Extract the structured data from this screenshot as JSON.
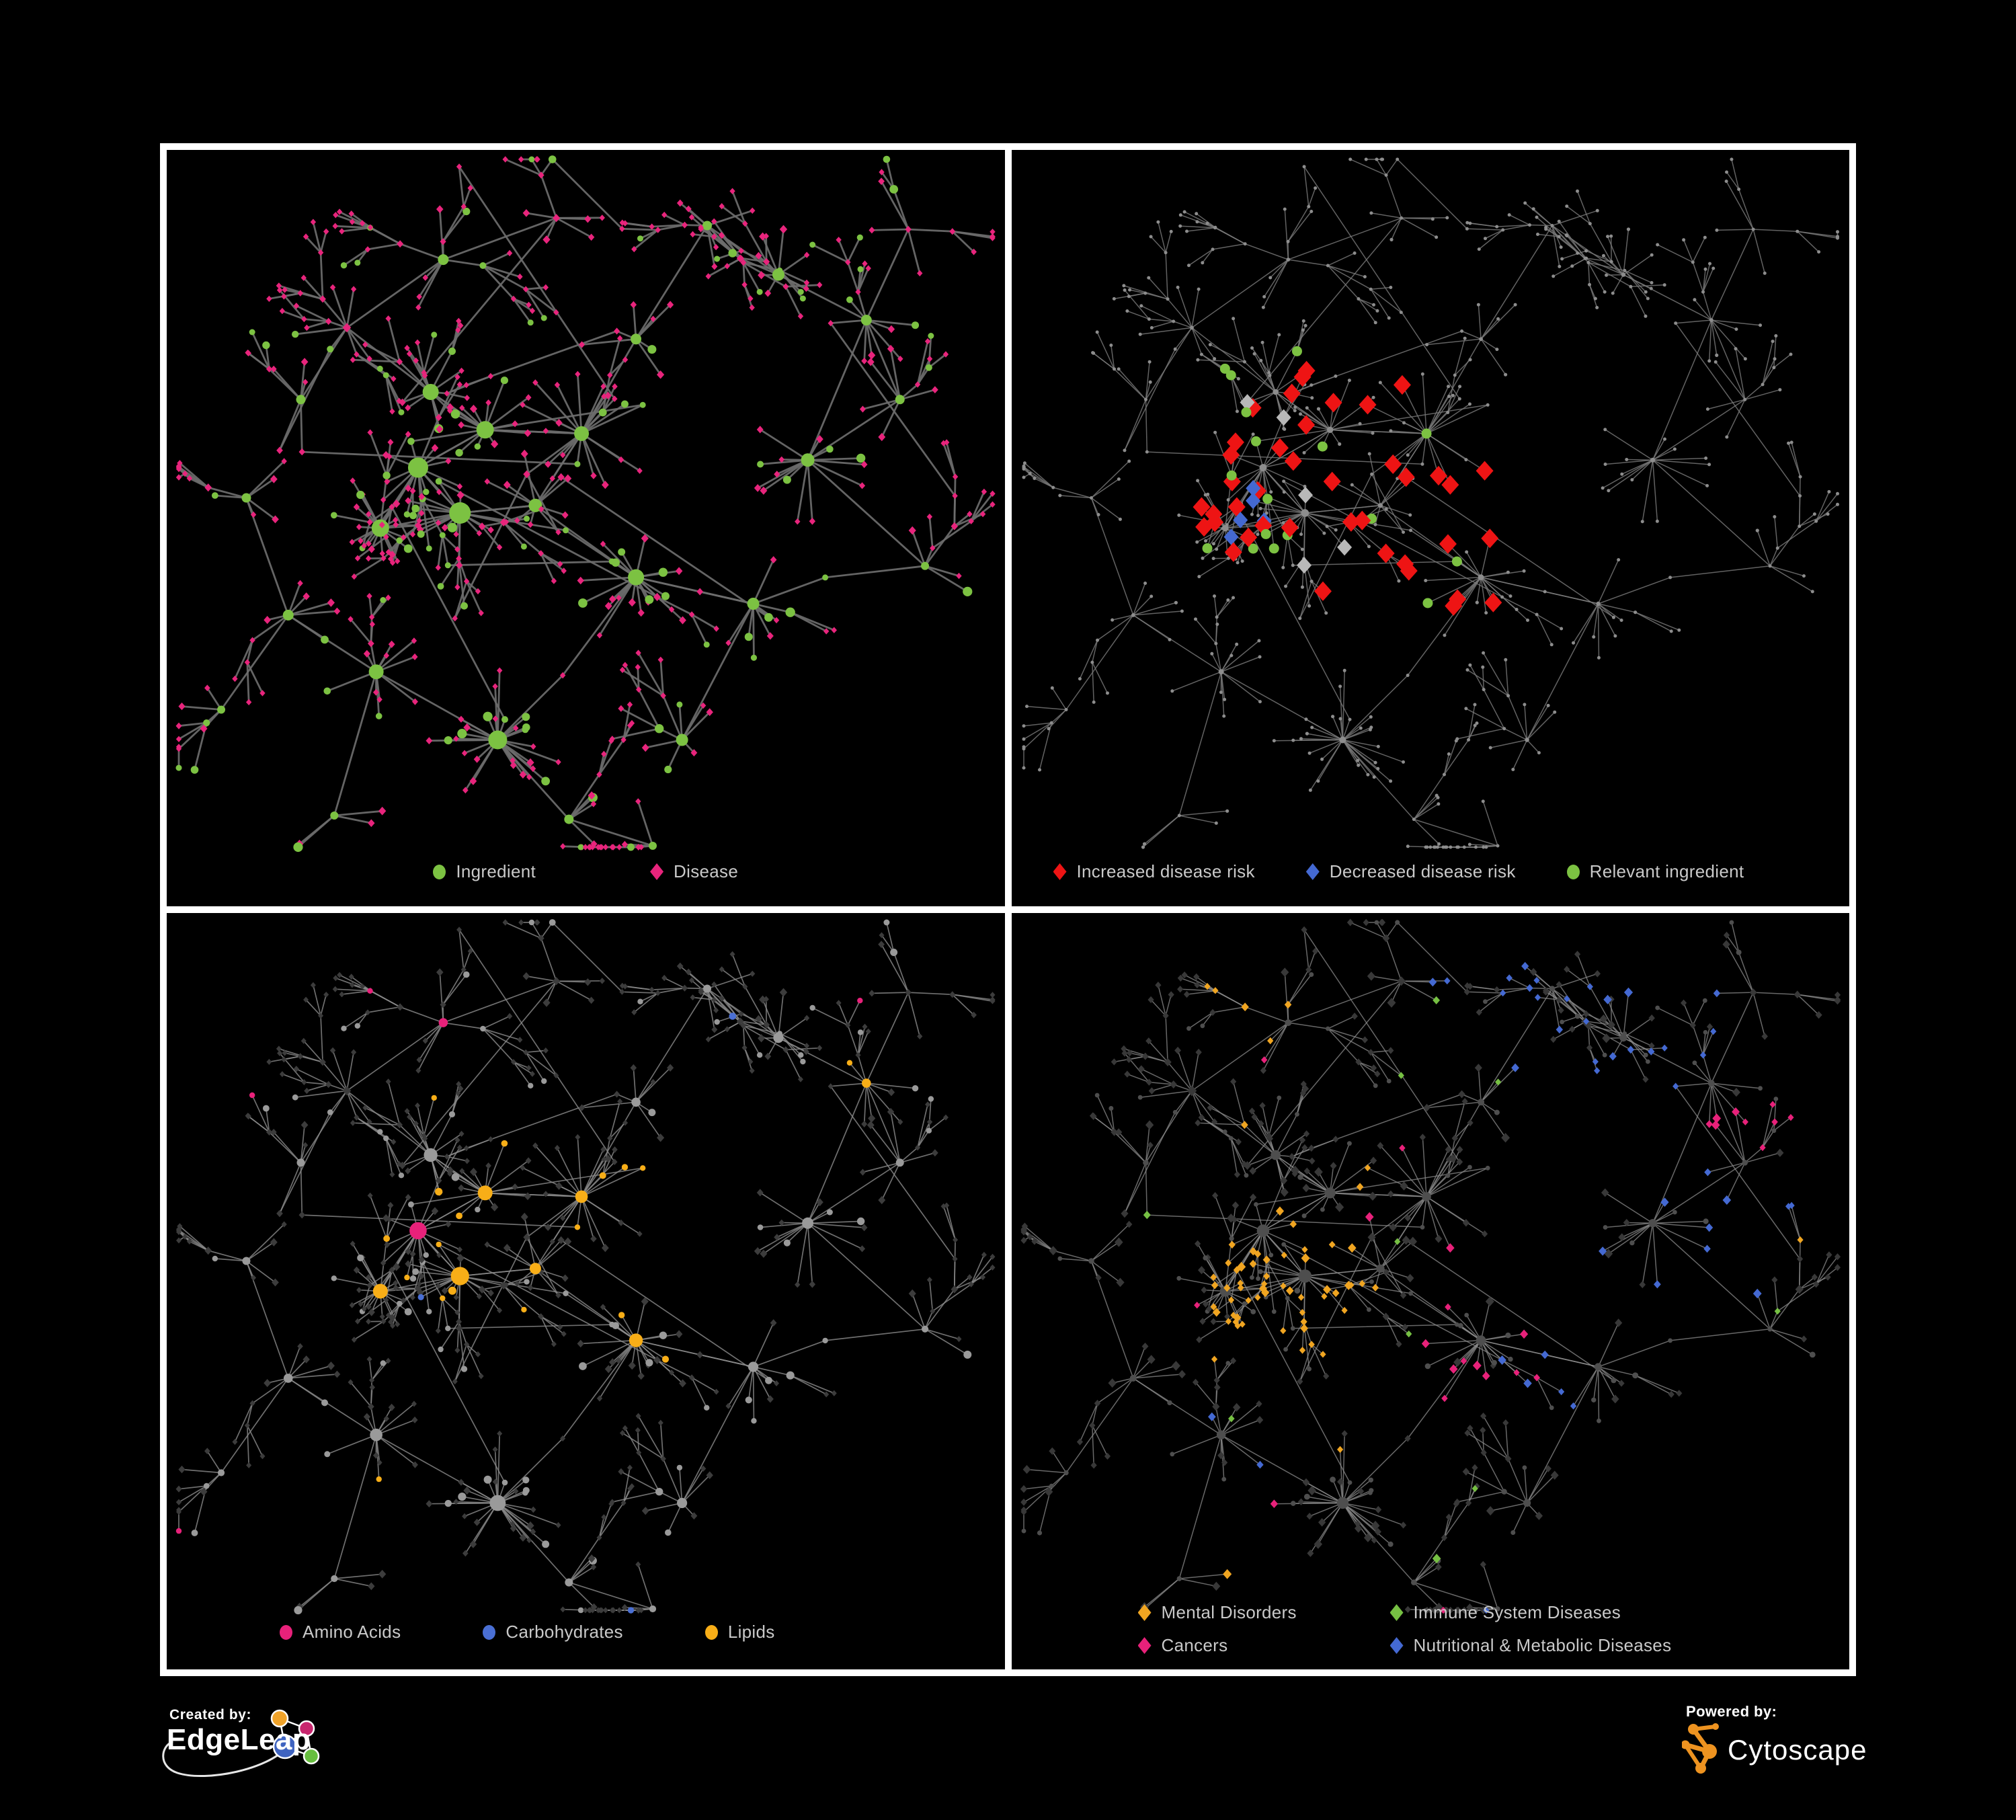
{
  "figure": {
    "background": "#000000",
    "frame_color": "#ffffff"
  },
  "footer": {
    "created_by": "Created by:",
    "brand": "EdgeLeap",
    "powered_by": "Powered by:",
    "product": "Cytoscape",
    "cytoscape_orange": "#EE9320",
    "edgeleap_colors": {
      "orange": "#F0A32A",
      "pink": "#C8266E",
      "blue": "#3E63C0",
      "green": "#67BE3F"
    }
  },
  "network": {
    "seed": 97,
    "hub_ingredient_p": 0.88,
    "leaf_disease_p": 0.78,
    "branch_p": 0.17,
    "cross_links": 14,
    "hubs": [
      [
        0.3,
        0.42,
        16,
        15,
        0
      ],
      [
        0.35,
        0.48,
        18,
        16,
        0
      ],
      [
        0.255,
        0.5,
        14,
        13,
        0
      ],
      [
        0.38,
        0.37,
        13,
        13,
        0
      ],
      [
        0.315,
        0.32,
        11,
        12,
        0
      ],
      [
        0.495,
        0.375,
        22,
        11,
        1
      ],
      [
        0.44,
        0.47,
        9,
        10,
        0
      ],
      [
        0.56,
        0.565,
        20,
        12,
        1
      ],
      [
        0.395,
        0.78,
        28,
        14,
        1
      ],
      [
        0.25,
        0.69,
        11,
        11,
        0
      ],
      [
        0.145,
        0.615,
        7,
        8,
        0
      ],
      [
        0.095,
        0.46,
        6,
        7,
        0
      ],
      [
        0.215,
        0.235,
        8,
        8,
        0
      ],
      [
        0.33,
        0.145,
        7,
        8,
        0
      ],
      [
        0.465,
        0.09,
        6,
        7,
        0
      ],
      [
        0.56,
        0.25,
        7,
        8,
        0
      ],
      [
        0.645,
        0.1,
        8,
        7,
        0
      ],
      [
        0.73,
        0.165,
        9,
        9,
        0
      ],
      [
        0.835,
        0.225,
        8,
        8,
        0
      ],
      [
        0.765,
        0.41,
        14,
        10,
        1
      ],
      [
        0.875,
        0.33,
        6,
        7,
        0
      ],
      [
        0.7,
        0.6,
        9,
        9,
        0
      ],
      [
        0.615,
        0.78,
        8,
        9,
        0
      ],
      [
        0.48,
        0.885,
        5,
        7,
        0
      ],
      [
        0.16,
        0.33,
        6,
        7,
        0
      ],
      [
        0.885,
        0.105,
        5,
        6,
        0
      ],
      [
        0.905,
        0.55,
        5,
        6,
        0
      ],
      [
        0.065,
        0.74,
        4,
        6,
        0
      ],
      [
        0.58,
        0.92,
        4,
        6,
        0
      ],
      [
        0.2,
        0.88,
        4,
        6,
        0
      ]
    ],
    "extra_links": [
      [
        0,
        1
      ],
      [
        0,
        2
      ],
      [
        1,
        2
      ],
      [
        0,
        3
      ],
      [
        3,
        4
      ],
      [
        1,
        6
      ],
      [
        3,
        5
      ],
      [
        5,
        6
      ],
      [
        1,
        7
      ],
      [
        19,
        20
      ],
      [
        21,
        26
      ],
      [
        7,
        21
      ]
    ]
  },
  "panels": [
    {
      "id": "ingredient-disease",
      "seed": 7,
      "edge": {
        "color": "#6C6C6C",
        "width": 2.8,
        "opacity": 0.92
      },
      "ingredient": {
        "shape": "circle",
        "color": "#7CC242",
        "scale": 1.0,
        "min": 4.5
      },
      "disease": {
        "shape": "diamond",
        "color": "#E8247C",
        "scale": 0.78,
        "min": 4.2
      },
      "categories": [],
      "legend": [
        {
          "shape": "circle",
          "color": "#7CC242",
          "label": "Ingredient"
        },
        {
          "shape": "diamond",
          "color": "#E8247C",
          "label": "Disease"
        }
      ]
    },
    {
      "id": "disease-risk",
      "seed": 11,
      "edge": {
        "color": "#7B7B7B",
        "width": 1.5,
        "opacity": 0.8
      },
      "ingredient": {
        "shape": "circle",
        "color": "#8D8D8D",
        "scale": 0.36,
        "min": 2.5
      },
      "disease": {
        "shape": "circle",
        "color": "#8D8D8D",
        "scale": 0.36,
        "min": 2.5
      },
      "categories": [
        {
          "name": "increased-risk",
          "apply": "d",
          "shape": "diamond",
          "color": "#EE1414",
          "size": 13,
          "centers": [
            [
              0.36,
              0.44,
              0.17,
              0.28
            ],
            [
              0.52,
              0.53,
              0.12,
              0.3
            ],
            [
              0.56,
              0.5,
              0.05,
              0.7
            ],
            [
              0.63,
              0.88,
              0.05,
              0.9
            ]
          ]
        },
        {
          "name": "decreased-risk",
          "apply": "d",
          "shape": "diamond",
          "color": "#4469D2",
          "size": 11,
          "centers": [
            [
              0.265,
              0.47,
              0.05,
              0.55
            ],
            [
              0.885,
              0.42,
              0.045,
              1.0
            ],
            [
              0.43,
              0.46,
              0.03,
              0.4
            ]
          ]
        },
        {
          "name": "neutral",
          "apply": "d",
          "shape": "diamond",
          "color": "#B8B8B8",
          "size": 11,
          "centers": [
            [
              0.31,
              0.46,
              0.17,
              0.07
            ],
            [
              0.52,
              0.6,
              0.1,
              0.12
            ]
          ]
        },
        {
          "name": "relevant-ingredient",
          "apply": "i",
          "shape": "circle",
          "color": "#7CC242",
          "size": 7.5,
          "centers": [
            [
              0.32,
              0.42,
              0.2,
              0.38
            ],
            [
              0.5,
              0.5,
              0.16,
              0.3
            ]
          ]
        }
      ],
      "legend": [
        {
          "shape": "diamond",
          "color": "#EE1414",
          "label": "Increased disease risk"
        },
        {
          "shape": "diamond",
          "color": "#4469D2",
          "label": "Decreased disease risk"
        },
        {
          "shape": "circle",
          "color": "#7CC242",
          "label": "Relevant ingredient"
        }
      ]
    },
    {
      "id": "nutrient-classes",
      "seed": 13,
      "edge": {
        "color": "#8B8B8B",
        "width": 1.7,
        "opacity": 0.8
      },
      "ingredient": {
        "shape": "circle",
        "color": "#9A9A9A",
        "scale": 0.85,
        "min": 4.2
      },
      "disease": {
        "shape": "diamond",
        "color": "#3C3C3C",
        "scale": 0.78,
        "min": 4.0
      },
      "categories": [
        {
          "name": "lipids",
          "apply": "i",
          "shape": "circle",
          "color": "#F8AE17",
          "centers": [
            [
              0.475,
              0.33,
              0.1,
              0.9
            ],
            [
              0.38,
              0.42,
              0.12,
              0.35
            ],
            [
              0.5,
              0.58,
              0.1,
              0.45
            ],
            [
              0.5,
              0.5,
              0.6,
              0.05
            ]
          ]
        },
        {
          "name": "carbohydrates",
          "apply": "i",
          "shape": "circle",
          "color": "#4A6FD4",
          "centers": [
            [
              0.46,
              0.34,
              0.07,
              0.35
            ],
            [
              0.42,
              0.53,
              0.06,
              0.3
            ],
            [
              0.5,
              0.5,
              0.6,
              0.022
            ]
          ]
        },
        {
          "name": "amino-acids",
          "apply": "i",
          "shape": "circle",
          "color": "#E8217A",
          "centers": [
            [
              0.5,
              0.5,
              0.65,
              0.055
            ]
          ]
        }
      ],
      "legend": [
        {
          "shape": "circle",
          "color": "#E8217A",
          "label": "Amino Acids"
        },
        {
          "shape": "circle",
          "color": "#4A6FD4",
          "label": "Carbohydrates"
        },
        {
          "shape": "circle",
          "color": "#F8AE17",
          "label": "Lipids"
        }
      ]
    },
    {
      "id": "disease-classes",
      "seed": 17,
      "edge": {
        "color": "#8B8B8B",
        "width": 1.5,
        "opacity": 0.75
      },
      "ingredient": {
        "shape": "circle",
        "color": "#4E4E4E",
        "scale": 0.62,
        "min": 3.4
      },
      "disease": {
        "shape": "diamond",
        "color": "#383838",
        "scale": 0.9,
        "min": 4.6
      },
      "categories": [
        {
          "name": "mental-disorders",
          "apply": "d",
          "shape": "diamond",
          "color": "#F0A521",
          "centers": [
            [
              0.34,
              0.49,
              0.105,
              0.95
            ],
            [
              0.3,
              0.11,
              0.07,
              0.45
            ],
            [
              0.5,
              0.5,
              0.6,
              0.02
            ]
          ]
        },
        {
          "name": "immune-system-diseases",
          "apply": "d",
          "shape": "diamond",
          "color": "#76C043",
          "centers": [
            [
              0.5,
              0.45,
              0.55,
              0.028
            ]
          ]
        },
        {
          "name": "cancers",
          "apply": "d",
          "shape": "diamond",
          "color": "#E8217A",
          "centers": [
            [
              0.56,
              0.57,
              0.09,
              0.8
            ],
            [
              0.47,
              0.43,
              0.06,
              0.5
            ],
            [
              0.88,
              0.27,
              0.055,
              0.9
            ],
            [
              0.5,
              0.5,
              0.6,
              0.018
            ]
          ]
        },
        {
          "name": "nutritional-metabolic",
          "apply": "d",
          "shape": "diamond",
          "color": "#4469D2",
          "centers": [
            [
              0.655,
              0.6,
              0.075,
              0.85
            ],
            [
              0.84,
              0.42,
              0.1,
              0.55
            ],
            [
              0.75,
              0.14,
              0.11,
              0.5
            ],
            [
              0.56,
              0.07,
              0.08,
              0.5
            ],
            [
              0.62,
              0.92,
              0.05,
              0.6
            ],
            [
              0.5,
              0.5,
              0.6,
              0.03
            ]
          ]
        }
      ],
      "legend": [
        {
          "shape": "diamond",
          "color": "#F0A521",
          "label": "Mental Disorders"
        },
        {
          "shape": "diamond",
          "color": "#76C043",
          "label": "Immune System Diseases"
        },
        {
          "shape": "diamond",
          "color": "#E8217A",
          "label": "Cancers"
        },
        {
          "shape": "diamond",
          "color": "#4469D2",
          "label": "Nutritional & Metabolic Diseases"
        }
      ]
    }
  ]
}
